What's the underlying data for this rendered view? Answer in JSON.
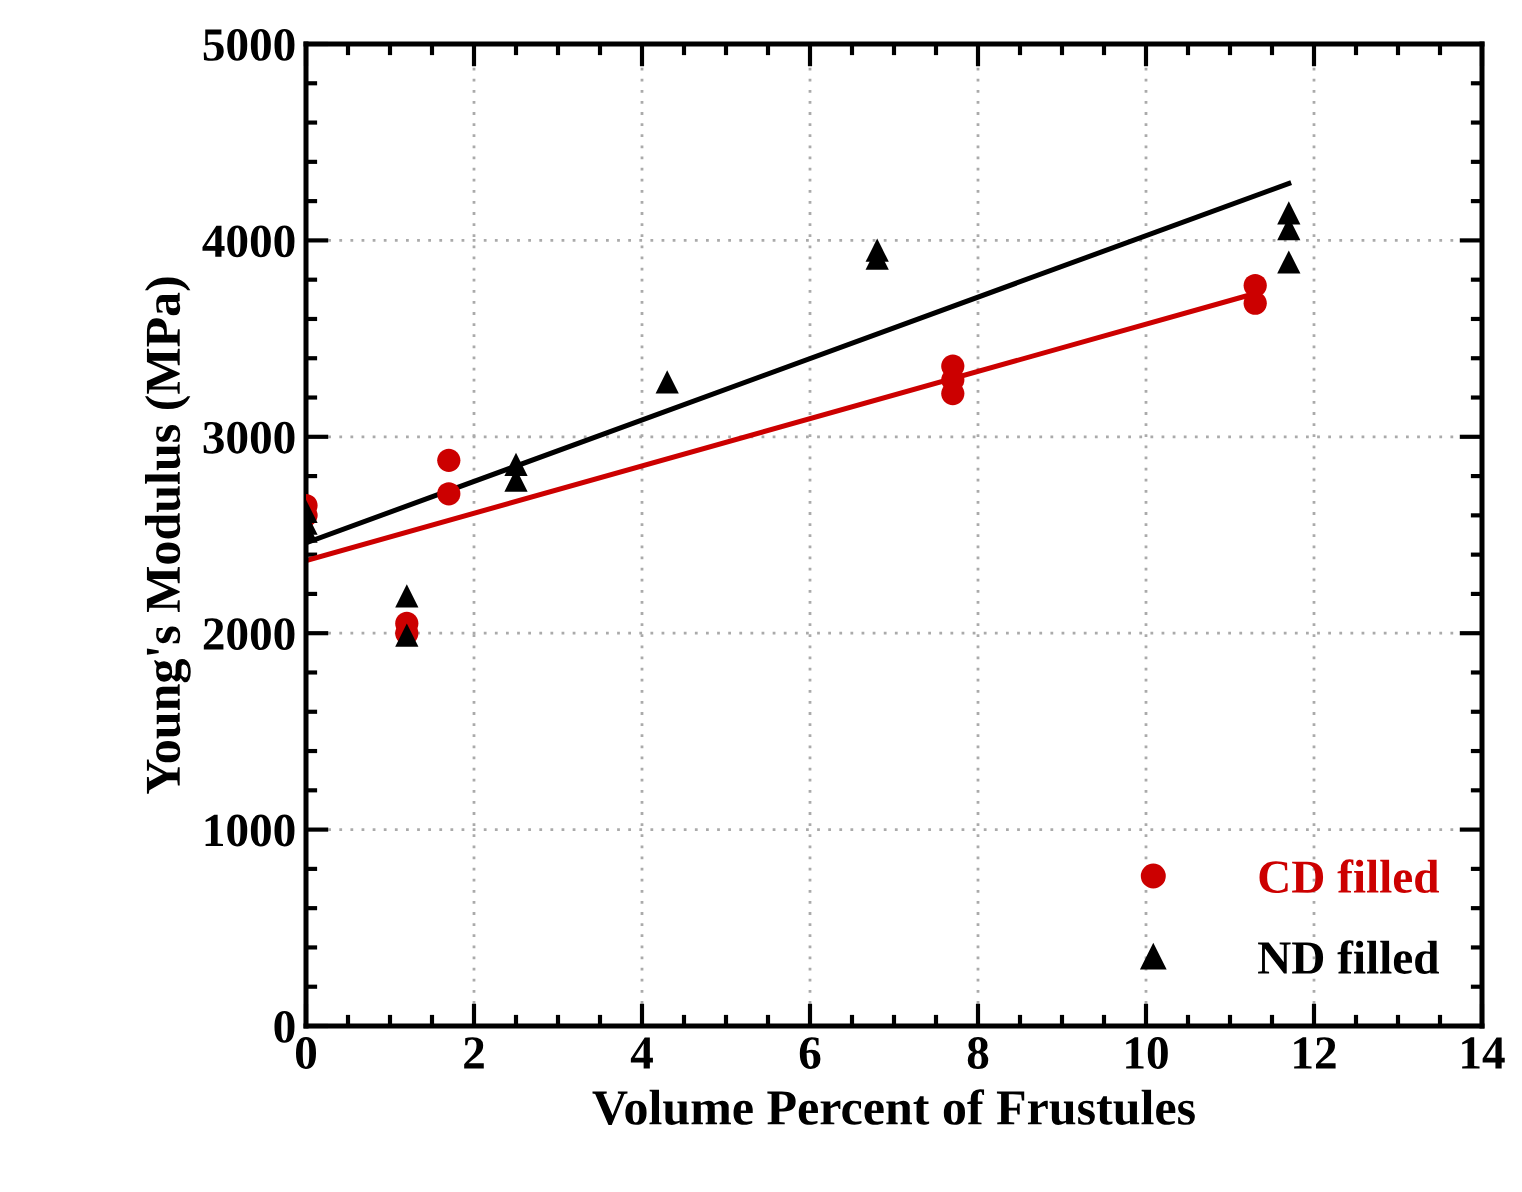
{
  "chart_data": {
    "type": "scatter",
    "xlabel": "Volume Percent of Frustules",
    "ylabel": "Young's Modulus (MPa)",
    "xlim": [
      0,
      14
    ],
    "xticks": [
      0,
      2,
      4,
      6,
      8,
      10,
      12,
      14
    ],
    "ylim": [
      0,
      5000
    ],
    "yticks": [
      0,
      1000,
      2000,
      3000,
      4000,
      5000
    ],
    "grid": true,
    "legend": "bottom right",
    "series": [
      {
        "name": "CD filled",
        "color": "#cc0000",
        "marker": "circle",
        "x": [
          0,
          0,
          1.2,
          1.2,
          1.7,
          1.7,
          7.7,
          7.7,
          7.7,
          11.3,
          11.3
        ],
        "values": [
          2650,
          2600,
          2050,
          2000,
          2880,
          2710,
          3360,
          3290,
          3220,
          3770,
          3680
        ]
      },
      {
        "name": "ND filled",
        "color": "#000000",
        "marker": "triangle",
        "x": [
          0,
          0,
          0,
          1.2,
          1.2,
          2.5,
          2.5,
          4.3,
          6.8,
          6.8,
          11.7,
          11.7,
          11.7
        ],
        "values": [
          2620,
          2560,
          2520,
          2190,
          1990,
          2860,
          2780,
          3280,
          3950,
          3910,
          4140,
          4060,
          3890
        ]
      },
      {
        "type": "line",
        "color": "#cc0000",
        "x": [
          0,
          11.3
        ],
        "values": [
          2370,
          3730
        ]
      },
      {
        "type": "line",
        "color": "#000000",
        "x": [
          0,
          11.7
        ],
        "values": [
          2460,
          4290
        ]
      }
    ]
  }
}
